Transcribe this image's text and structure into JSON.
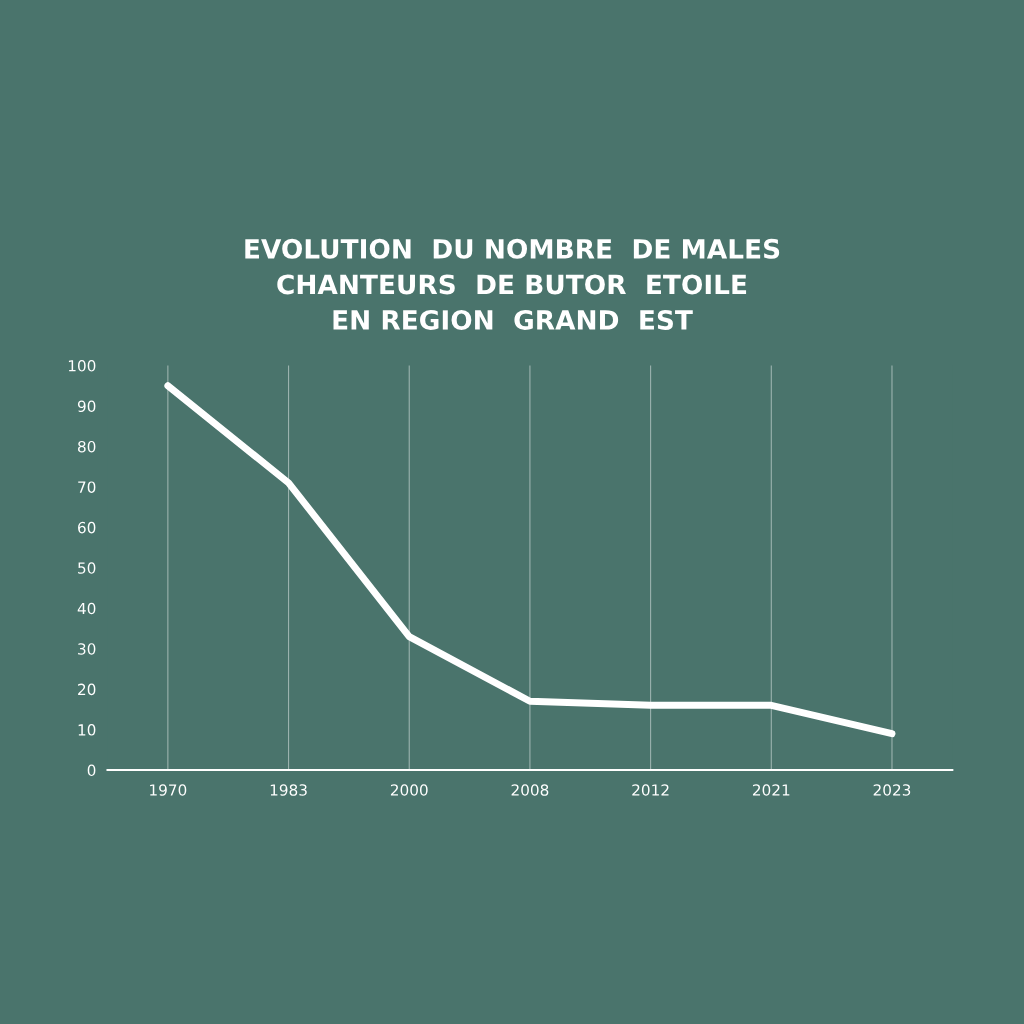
{
  "chart_data": {
    "type": "line",
    "title": "EVOLUTION  DU NOMBRE  DE MALES\nCHANTEURS  DE BUTOR  ETOILE\nEN REGION  GRAND  EST",
    "categories": [
      "1970",
      "1983",
      "2000",
      "2008",
      "2012",
      "2021",
      "2023"
    ],
    "series": [
      {
        "color": "#ffffff",
        "values": [
          95,
          71,
          33,
          17,
          16,
          16,
          9
        ]
      }
    ],
    "ylim": [
      0,
      100
    ],
    "yticks": [
      0,
      10,
      20,
      30,
      40,
      50,
      60,
      70,
      80,
      90,
      100
    ],
    "grid": "x",
    "legend": false,
    "marker": "none",
    "line_style": "solid"
  }
}
